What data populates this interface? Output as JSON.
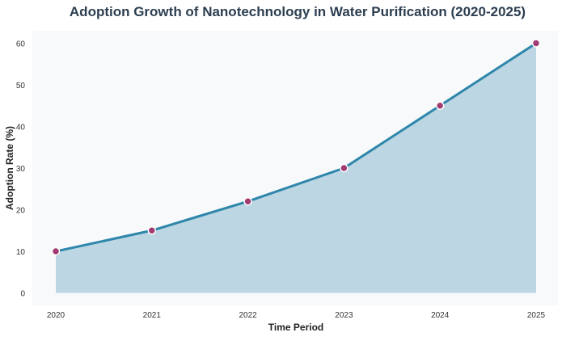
{
  "chart_data": {
    "type": "area",
    "title": "Adoption Growth of Nanotechnology in Water Purification (2020-2025)",
    "xlabel": "Time Period",
    "ylabel": "Adoption Rate (%)",
    "categories": [
      "2020",
      "2021",
      "2022",
      "2023",
      "2024",
      "2025"
    ],
    "values": [
      10,
      15,
      22,
      30,
      45,
      60
    ],
    "yticks": [
      0,
      10,
      20,
      30,
      40,
      50,
      60
    ],
    "ylim": [
      -3,
      63
    ],
    "grid": false,
    "colors": {
      "line": "#2e86ab",
      "fill": "#bcd6e3",
      "marker": "#a23b72",
      "background": "#f7f9fb",
      "title": "#2c3e50"
    }
  }
}
